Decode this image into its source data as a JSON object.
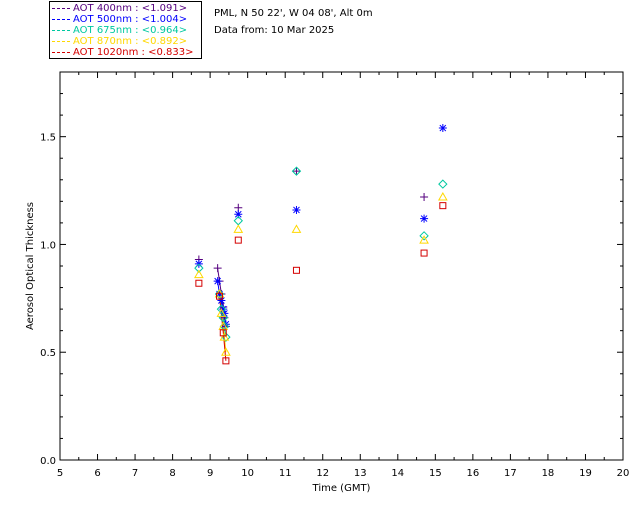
{
  "header": {
    "location": "PML, N 50 22', W 04 08', Alt 0m",
    "date_line": "Data from: 10 Mar 2025"
  },
  "chart_data": {
    "type": "scatter",
    "title": "",
    "xlabel": "Time (GMT)",
    "ylabel": "Aerosol Optical Thickness",
    "xlim": [
      5,
      20
    ],
    "ylim": [
      0.0,
      1.8
    ],
    "xticks": [
      5,
      6,
      7,
      8,
      9,
      10,
      11,
      12,
      13,
      14,
      15,
      16,
      17,
      18,
      19,
      20
    ],
    "yticks": [
      "0.0",
      "0.5",
      "1.0",
      "1.5"
    ],
    "legend_position": "top-left",
    "series": [
      {
        "name": "AOT 400nm",
        "label": "AOT  400nm : <1.091>",
        "color": "#55007f",
        "marker": "plus",
        "x": [
          8.7,
          9.2,
          9.25,
          9.3,
          9.35,
          9.38,
          9.42,
          9.75,
          11.3,
          14.7
        ],
        "y": [
          0.93,
          0.89,
          0.83,
          0.77,
          0.71,
          0.66,
          0.62,
          1.17,
          1.34,
          1.22
        ]
      },
      {
        "name": "AOT 500nm",
        "label": "AOT  500nm : <1.004>",
        "color": "#0000ff",
        "marker": "asterisk",
        "x": [
          8.7,
          9.2,
          9.25,
          9.3,
          9.35,
          9.38,
          9.42,
          9.75,
          11.3,
          14.7,
          15.2
        ],
        "y": [
          0.91,
          0.83,
          0.77,
          0.74,
          0.7,
          0.68,
          0.63,
          1.14,
          1.16,
          1.12,
          1.54
        ]
      },
      {
        "name": "AOT 675nm",
        "label": "AOT  675nm : <0.964>",
        "color": "#00c8a0",
        "marker": "diamond",
        "x": [
          8.7,
          9.25,
          9.3,
          9.35,
          9.38,
          9.42,
          9.75,
          11.3,
          14.7,
          15.2
        ],
        "y": [
          0.89,
          0.77,
          0.7,
          0.66,
          0.62,
          0.57,
          1.11,
          1.34,
          1.04,
          1.28
        ]
      },
      {
        "name": "AOT 870nm",
        "label": "AOT  870nm : <0.892>",
        "color": "#ffd800",
        "marker": "triangle",
        "x": [
          8.7,
          9.25,
          9.3,
          9.35,
          9.38,
          9.42,
          9.75,
          11.3,
          14.7,
          15.2
        ],
        "y": [
          0.86,
          0.77,
          0.68,
          0.62,
          0.57,
          0.5,
          1.07,
          1.07,
          1.02,
          1.22
        ]
      },
      {
        "name": "AOT 1020nm",
        "label": "AOT 1020nm : <0.833>",
        "color": "#d40000",
        "marker": "square",
        "x": [
          8.7,
          9.25,
          9.35,
          9.42,
          9.75,
          11.3,
          14.7,
          15.2
        ],
        "y": [
          0.82,
          0.76,
          0.59,
          0.46,
          1.02,
          0.88,
          0.96,
          1.18
        ]
      }
    ]
  }
}
